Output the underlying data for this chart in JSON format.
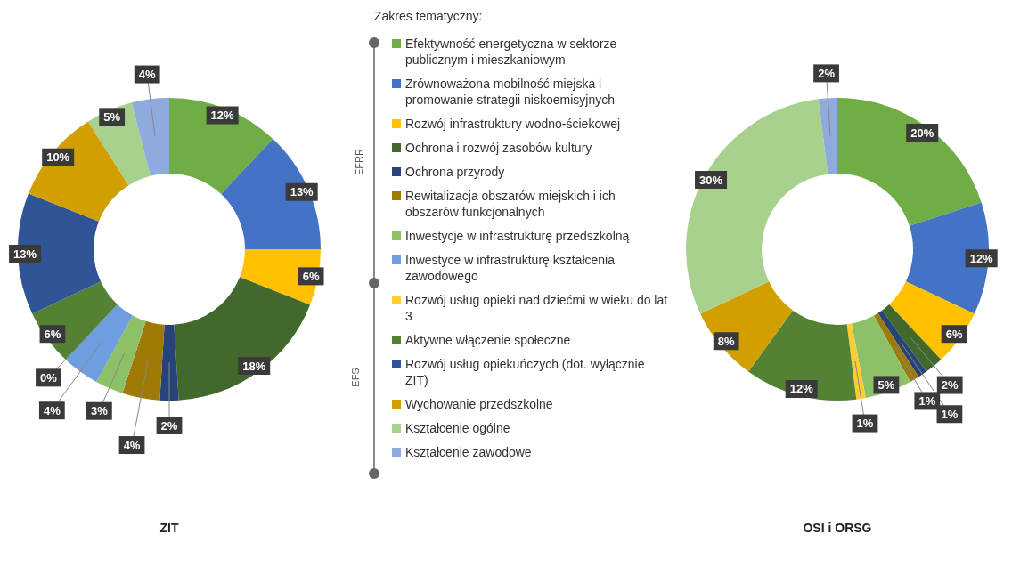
{
  "chart_data": [
    {
      "type": "donut",
      "title": "ZIT",
      "legend": "right",
      "legend_title": "Zakres tematyczny:",
      "annotations": [
        "EFRR",
        "EFS"
      ],
      "categories": [
        "Efektywność energetyczna w sektorze publicznym i mieszkaniowym",
        "Zrównoważona mobilność miejska i promowanie strategii niskoemisyjnych",
        "Rozwój infrastruktury wodno-ściekowej",
        "Ochrona i rozwój zasobów kultury",
        "Ochrona przyrody",
        "Rewitalizacja obszarów miejskich i ich obszarów funkcjonalnych",
        "Inwestycje w infrastrukturę przedszkolną",
        "Inwestyce w infrastrukturę kształcenia zawodowego",
        "Rozwój usług opieki nad dziećmi w wieku do lat 3",
        "Aktywne włączenie społeczne",
        "Rozwój usług opiekuńczych (dot. wyłącznie ZIT)",
        "Wychowanie przedszkolne",
        "Kształcenie ogólne",
        "Kształcenie zawodowe"
      ],
      "values": [
        12,
        13,
        6,
        18,
        2,
        4,
        3,
        4,
        0,
        6,
        13,
        10,
        5,
        4
      ],
      "value_labels": [
        "12%",
        "13%",
        "6%",
        "18%",
        "2%",
        "4%",
        "3%",
        "4%",
        "0%",
        "6%",
        "13%",
        "10%",
        "5%",
        "4%"
      ],
      "colors": [
        "#70ad47",
        "#4472c4",
        "#ffc000",
        "#43682b",
        "#264478",
        "#9e7a07",
        "#8cc168",
        "#6f9ee0",
        "#ffcd33",
        "#548235",
        "#2f5597",
        "#d29f00",
        "#a9d18e",
        "#8faadc"
      ]
    },
    {
      "type": "donut",
      "title": "OSI i ORSG",
      "categories": [
        null,
        null,
        null,
        null,
        null,
        null,
        null,
        null,
        null,
        null,
        null,
        null,
        null,
        null
      ],
      "values": [
        20,
        12,
        6,
        2,
        1,
        1,
        5,
        0,
        1,
        12,
        0,
        8,
        30,
        2
      ],
      "value_labels": [
        "20%",
        "12%",
        "6%",
        "2%",
        "1%",
        "1%",
        "5%",
        null,
        "1%",
        "12%",
        null,
        "8%",
        "30%",
        "2%"
      ],
      "colors": [
        "#70ad47",
        "#4472c4",
        "#ffc000",
        "#43682b",
        "#264478",
        "#9e7a07",
        "#8cc168",
        "#6f9ee0",
        "#ffcd33",
        "#548235",
        "#2f5597",
        "#d29f00",
        "#a9d18e",
        "#8faadc"
      ]
    }
  ]
}
